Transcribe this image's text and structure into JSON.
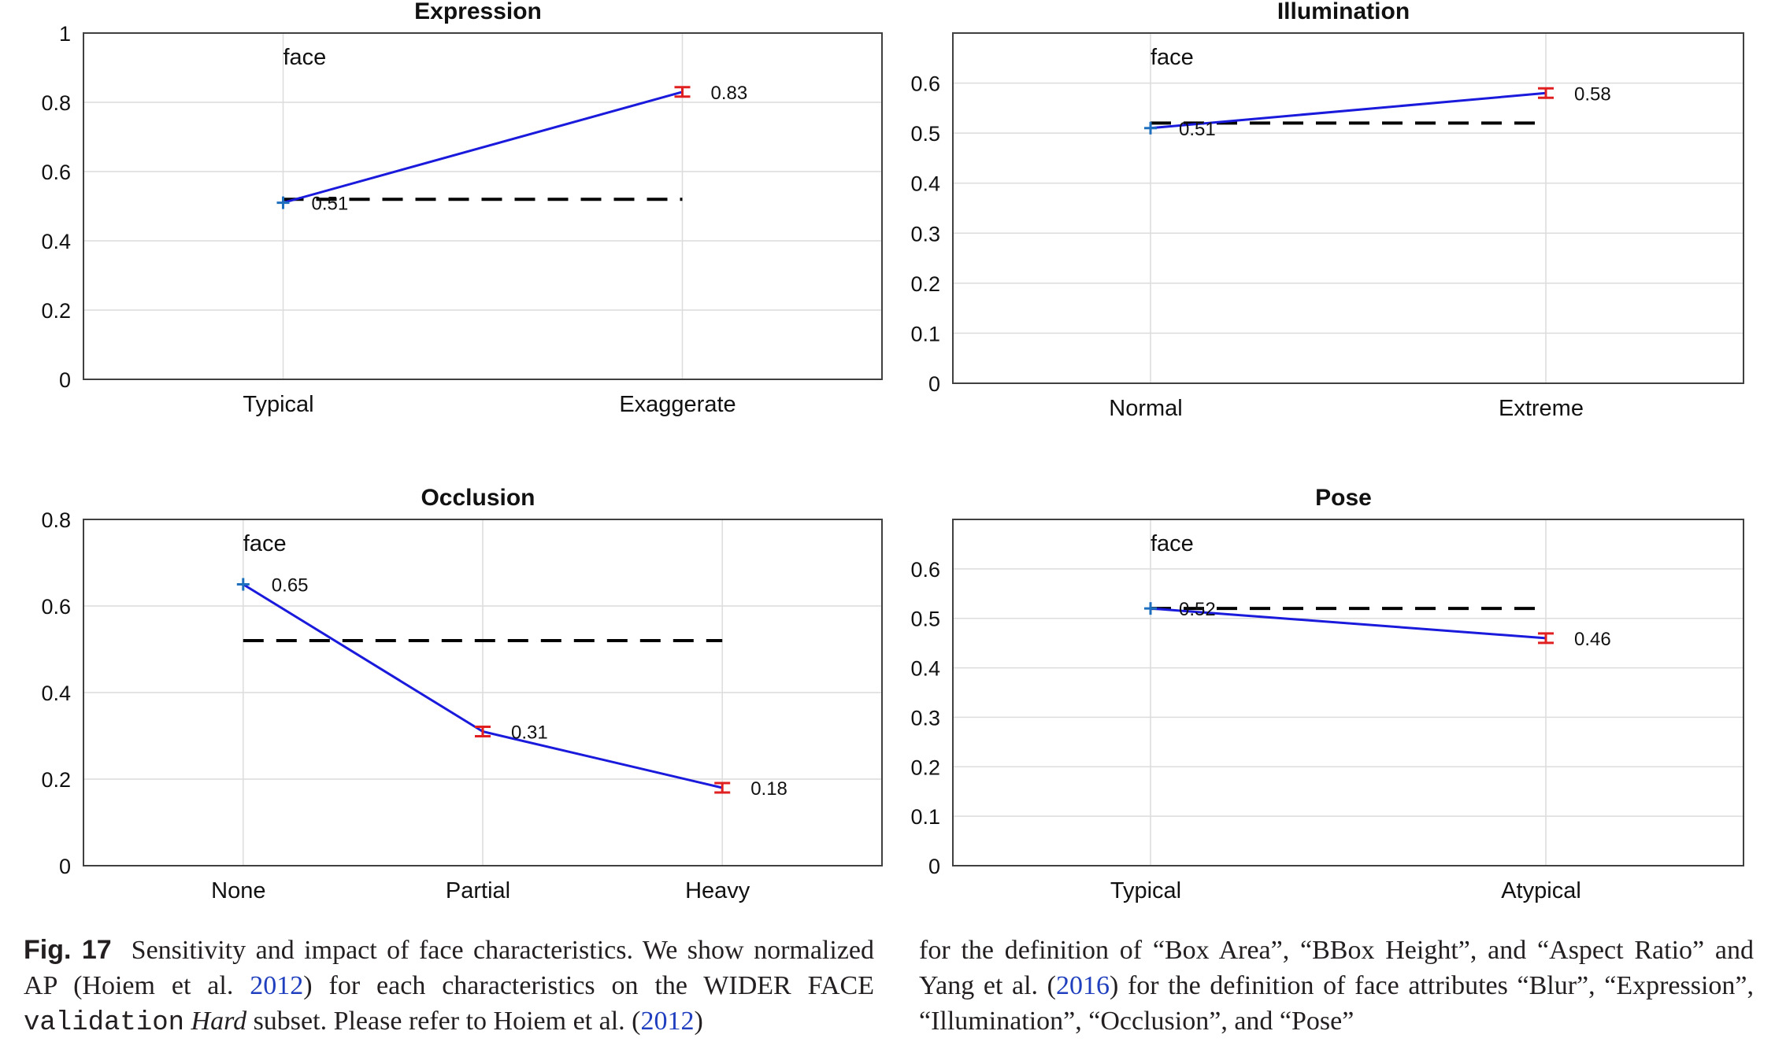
{
  "chart_data": [
    {
      "type": "line",
      "title": "Expression",
      "categories": [
        "Typical",
        "Exaggerate"
      ],
      "series": [
        {
          "name": "face",
          "values": [
            0.51,
            0.83
          ]
        }
      ],
      "baseline": 0.52,
      "point_labels": [
        "0.51",
        "0.83"
      ],
      "ylim": [
        0,
        1
      ],
      "yticks": [
        0,
        0.2,
        0.4,
        0.6,
        0.8,
        1
      ],
      "ytick_labels": [
        "0",
        "0.2",
        "0.4",
        "0.6",
        "0.8",
        "1"
      ],
      "grid": true
    },
    {
      "type": "line",
      "title": "Illumination",
      "categories": [
        "Normal",
        "Extreme"
      ],
      "series": [
        {
          "name": "face",
          "values": [
            0.51,
            0.58
          ]
        }
      ],
      "baseline": 0.52,
      "point_labels": [
        "0.51",
        "0.58"
      ],
      "ylim": [
        0,
        0.7
      ],
      "yticks": [
        0,
        0.1,
        0.2,
        0.3,
        0.4,
        0.5,
        0.6
      ],
      "ytick_labels": [
        "0",
        "0.1",
        "0.2",
        "0.3",
        "0.4",
        "0.5",
        "0.6"
      ],
      "grid": true
    },
    {
      "type": "line",
      "title": "Occlusion",
      "categories": [
        "None",
        "Partial",
        "Heavy"
      ],
      "series": [
        {
          "name": "face",
          "values": [
            0.65,
            0.31,
            0.18
          ]
        }
      ],
      "baseline": 0.52,
      "point_labels": [
        "0.65",
        "0.31",
        "0.18"
      ],
      "ylim": [
        0,
        0.8
      ],
      "yticks": [
        0,
        0.2,
        0.4,
        0.6,
        0.8
      ],
      "ytick_labels": [
        "0",
        "0.2",
        "0.4",
        "0.6",
        "0.8"
      ],
      "grid": true
    },
    {
      "type": "line",
      "title": "Pose",
      "categories": [
        "Typical",
        "Atypical"
      ],
      "series": [
        {
          "name": "face",
          "values": [
            0.52,
            0.46
          ]
        }
      ],
      "baseline": 0.52,
      "point_labels": [
        "0.52",
        "0.46"
      ],
      "ylim": [
        0,
        0.7
      ],
      "yticks": [
        0,
        0.1,
        0.2,
        0.3,
        0.4,
        0.5,
        0.6
      ],
      "ytick_labels": [
        "0",
        "0.1",
        "0.2",
        "0.3",
        "0.4",
        "0.5",
        "0.6"
      ],
      "grid": true
    }
  ],
  "colors": {
    "series_line": "#1a1adc",
    "baseline": "#000000",
    "error_marker": "#e02020",
    "first_marker": "#1f6fbf",
    "grid": "#dcdcdc",
    "frame": "#404040",
    "citation": "#1f3fbf"
  },
  "caption": {
    "fig_label": "Fig. 17",
    "left_text_1": "Sensitivity and impact of face characteristics. We show normalized AP (Hoiem et al. ",
    "left_cite_1": "2012",
    "left_text_2": ") for each characteristics on the WIDER FACE ",
    "left_mono": "validation",
    "left_italic": "Hard",
    "left_text_3": " subset. Please refer to Hoiem et al. (",
    "left_cite_2": "2012",
    "left_text_4": ")",
    "right_text_1": "for the definition of “Box Area”, “BBox Height”, and “Aspect Ratio” and Yang et al. (",
    "right_cite": "2016",
    "right_text_2": ") for the definition of face attributes “Blur”, “Expression”, “Illumination”, “Occlusion”, and “Pose”"
  }
}
